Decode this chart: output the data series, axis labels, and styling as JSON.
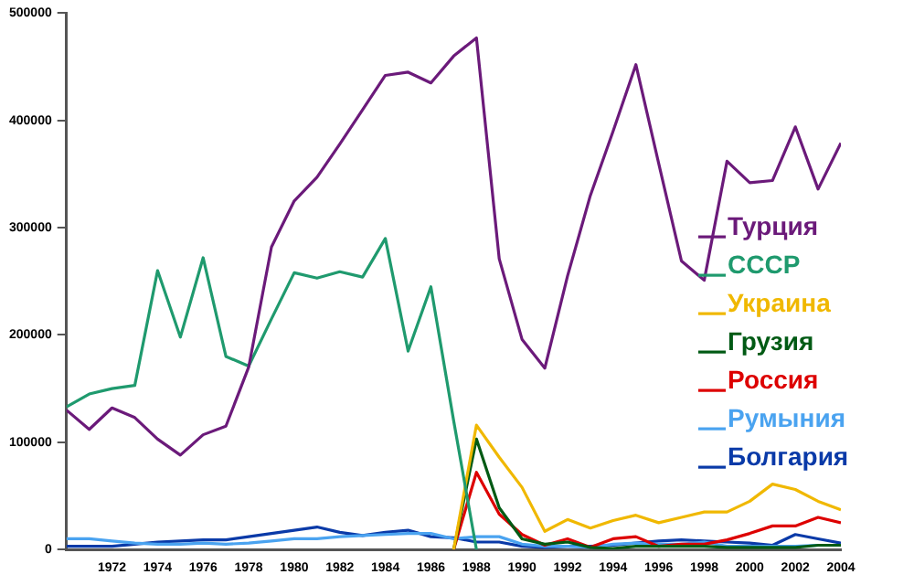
{
  "chart_data": {
    "type": "line",
    "x": [
      1970,
      1971,
      1972,
      1973,
      1974,
      1975,
      1976,
      1977,
      1978,
      1979,
      1980,
      1981,
      1982,
      1983,
      1984,
      1985,
      1986,
      1987,
      1988,
      1989,
      1990,
      1991,
      1992,
      1993,
      1994,
      1995,
      1996,
      1997,
      1998,
      1999,
      2000,
      2001,
      2002,
      2003,
      2004
    ],
    "series": [
      {
        "name": "Турция",
        "color": "#6b1a7a",
        "values": [
          130000,
          112000,
          132000,
          123000,
          103000,
          88000,
          107000,
          115000,
          170000,
          282000,
          325000,
          347000,
          378000,
          410000,
          442000,
          445000,
          435000,
          460000,
          477000,
          271000,
          196000,
          169000,
          255000,
          330000,
          390000,
          452000,
          360000,
          269000,
          251000,
          362000,
          342000,
          344000,
          394000,
          336000,
          379000
        ]
      },
      {
        "name": "СССР",
        "color": "#1f9a6e",
        "values": [
          133000,
          145000,
          150000,
          153000,
          260000,
          198000,
          272000,
          180000,
          171000,
          215000,
          258000,
          253000,
          259000,
          254000,
          290000,
          185000,
          245000,
          120000,
          0,
          null,
          null,
          null,
          null,
          null,
          null,
          null,
          null,
          null,
          null,
          null,
          null,
          null,
          null,
          null,
          null
        ]
      },
      {
        "name": "Украина",
        "color": "#f0b800",
        "values": [
          null,
          null,
          null,
          null,
          null,
          null,
          null,
          null,
          null,
          null,
          null,
          null,
          null,
          null,
          null,
          null,
          null,
          0,
          116000,
          86000,
          58000,
          17000,
          28000,
          20000,
          27000,
          32000,
          25000,
          30000,
          35000,
          35000,
          45000,
          61000,
          56000,
          45000,
          37000
        ]
      },
      {
        "name": "Грузия",
        "color": "#005a14",
        "values": [
          null,
          null,
          null,
          null,
          null,
          null,
          null,
          null,
          null,
          null,
          null,
          null,
          null,
          null,
          null,
          null,
          null,
          0,
          103000,
          39000,
          10000,
          5000,
          7000,
          2000,
          1000,
          3000,
          3000,
          3000,
          3000,
          2000,
          2000,
          2000,
          2000,
          4000,
          4000
        ]
      },
      {
        "name": "Россия",
        "color": "#dd0000",
        "values": [
          null,
          null,
          null,
          null,
          null,
          null,
          null,
          null,
          null,
          null,
          null,
          null,
          null,
          null,
          null,
          null,
          null,
          0,
          72000,
          33000,
          14000,
          4000,
          10000,
          2000,
          10000,
          12000,
          3000,
          5000,
          5000,
          9000,
          15000,
          22000,
          22000,
          30000,
          25000
        ]
      },
      {
        "name": "Румыния",
        "color": "#4aa3f0",
        "values": [
          10000,
          10000,
          8000,
          6000,
          5000,
          5000,
          6000,
          5000,
          6000,
          8000,
          10000,
          10000,
          12000,
          13000,
          14000,
          15000,
          15000,
          10000,
          12000,
          12000,
          5000,
          3000,
          3000,
          2000,
          5000,
          6000,
          5000,
          5000,
          7000,
          3000,
          3000,
          3000,
          3000,
          4000,
          4000
        ]
      },
      {
        "name": "Болгария",
        "color": "#0a3aa8",
        "values": [
          3000,
          3000,
          3000,
          5000,
          7000,
          8000,
          9000,
          9000,
          12000,
          15000,
          18000,
          21000,
          16000,
          13000,
          16000,
          18000,
          12000,
          11000,
          7000,
          7000,
          3000,
          2000,
          3000,
          3000,
          4000,
          6000,
          8000,
          9000,
          8000,
          7000,
          6000,
          4000,
          14000,
          10000,
          6000
        ]
      }
    ],
    "xlim": [
      1970,
      2004
    ],
    "xticks": [
      1972,
      1974,
      1976,
      1978,
      1980,
      1982,
      1984,
      1986,
      1988,
      1990,
      1992,
      1994,
      1996,
      1998,
      2000,
      2002,
      2004
    ],
    "ylim": [
      0,
      500000
    ],
    "yticks": [
      0,
      100000,
      200000,
      300000,
      400000,
      500000
    ],
    "grid": false,
    "legend": "right",
    "marker": "none",
    "line_style": "solid"
  }
}
